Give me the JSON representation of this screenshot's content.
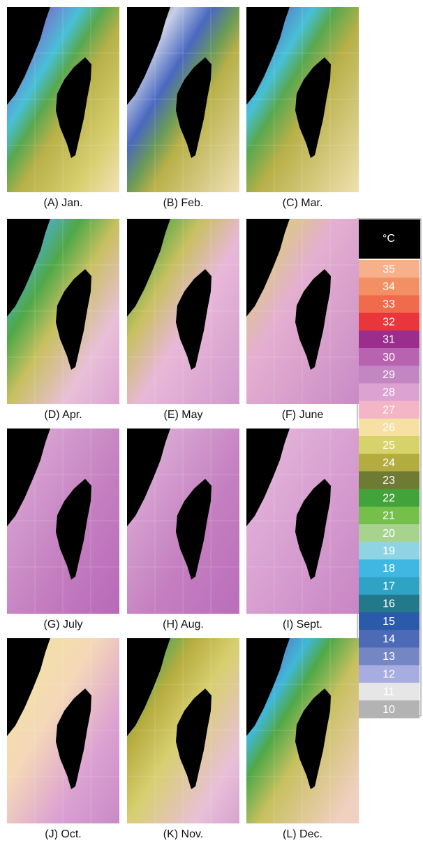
{
  "panels": [
    {
      "label": "(A) Jan."
    },
    {
      "label": "(B) Feb."
    },
    {
      "label": "(C) Mar."
    },
    {
      "label": "(D) Apr."
    },
    {
      "label": "(E) May"
    },
    {
      "label": "(F) June"
    },
    {
      "label": "(G) July"
    },
    {
      "label": "(H) Aug."
    },
    {
      "label": "(I) Sept."
    },
    {
      "label": "(J) Oct."
    },
    {
      "label": "(K) Nov."
    },
    {
      "label": "(L) Dec."
    }
  ],
  "colorbar": {
    "unit": "°C",
    "levels": [
      {
        "value": 35,
        "color": "#f6b08a"
      },
      {
        "value": 34,
        "color": "#f39063"
      },
      {
        "value": 33,
        "color": "#f06a4c"
      },
      {
        "value": 32,
        "color": "#e8363a"
      },
      {
        "value": 31,
        "color": "#9b2d8c"
      },
      {
        "value": 30,
        "color": "#b763b0"
      },
      {
        "value": 29,
        "color": "#c485c3"
      },
      {
        "value": 28,
        "color": "#dca2d2"
      },
      {
        "value": 27,
        "color": "#f4b5c6"
      },
      {
        "value": 26,
        "color": "#f6e0a4"
      },
      {
        "value": 25,
        "color": "#d8d26a"
      },
      {
        "value": 24,
        "color": "#b3ad3f"
      },
      {
        "value": 23,
        "color": "#6f7a33"
      },
      {
        "value": 22,
        "color": "#41a33a"
      },
      {
        "value": 21,
        "color": "#74c04b"
      },
      {
        "value": 20,
        "color": "#a6d48e"
      },
      {
        "value": 19,
        "color": "#8fd4e3"
      },
      {
        "value": 18,
        "color": "#40b6e2"
      },
      {
        "value": 17,
        "color": "#2ea3c4"
      },
      {
        "value": 16,
        "color": "#21798a"
      },
      {
        "value": 15,
        "color": "#2c5aaa"
      },
      {
        "value": 14,
        "color": "#4d6ab7"
      },
      {
        "value": 13,
        "color": "#7486c4"
      },
      {
        "value": 12,
        "color": "#a7ade0"
      },
      {
        "value": 11,
        "color": "#e6e6e6"
      },
      {
        "value": 10,
        "color": "#b3b3b3"
      }
    ]
  }
}
